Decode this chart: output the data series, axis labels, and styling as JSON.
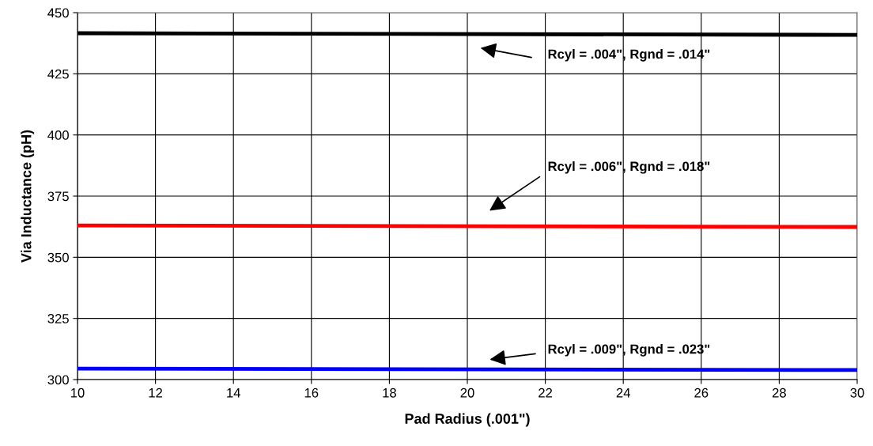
{
  "chart_data": {
    "type": "line",
    "xlabel": "Pad Radius (.001\")",
    "ylabel": "Via Inductance (pH)",
    "x": [
      10,
      30
    ],
    "series": [
      {
        "color": "#000000",
        "values": [
          441.6,
          440.9
        ]
      },
      {
        "color": "#ff0000",
        "values": [
          363.0,
          362.4
        ]
      },
      {
        "color": "#0000ff",
        "values": [
          304.5,
          303.9
        ]
      }
    ],
    "xlim": [
      10,
      30
    ],
    "xticks": [
      10,
      12,
      14,
      16,
      18,
      20,
      22,
      24,
      26,
      28,
      30
    ],
    "ylim": [
      300,
      450
    ],
    "yticks": [
      300,
      325,
      350,
      375,
      400,
      425,
      450
    ],
    "grid": true,
    "marker": "none",
    "line_style": "solid",
    "legend": false,
    "annotations": [
      "Rcyl = .004\", Rgnd = .014\"",
      "Rcyl = .006\", Rgnd = .018\"",
      "Rcyl = .009\", Rgnd = .023\""
    ]
  }
}
